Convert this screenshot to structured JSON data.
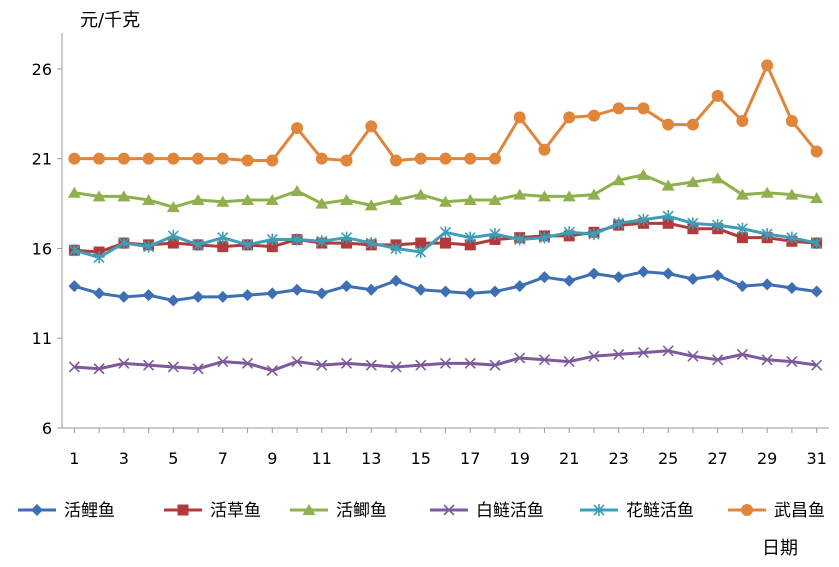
{
  "chart_data": {
    "type": "line",
    "ylabel": "元/千克",
    "xlabel": "日期",
    "ylim": [
      6,
      28
    ],
    "yticks": [
      6,
      11,
      16,
      21,
      26
    ],
    "xticks": [
      1,
      3,
      5,
      7,
      9,
      11,
      13,
      15,
      17,
      19,
      21,
      23,
      25,
      27,
      29,
      31
    ],
    "x": [
      1,
      2,
      3,
      4,
      5,
      6,
      7,
      8,
      9,
      10,
      11,
      12,
      13,
      14,
      15,
      16,
      17,
      18,
      19,
      20,
      21,
      22,
      23,
      24,
      25,
      26,
      27,
      28,
      29,
      30,
      31
    ],
    "legend_position": "bottom",
    "series": [
      {
        "name": "活鲤鱼",
        "color": "#3e6fb4",
        "marker": "diamond",
        "values": [
          13.9,
          13.5,
          13.3,
          13.4,
          13.1,
          13.3,
          13.3,
          13.4,
          13.5,
          13.7,
          13.5,
          13.9,
          13.7,
          14.2,
          13.7,
          13.6,
          13.5,
          13.6,
          13.9,
          14.4,
          14.2,
          14.6,
          14.4,
          14.7,
          14.6,
          14.3,
          14.5,
          13.9,
          14.0,
          13.8,
          13.6
        ]
      },
      {
        "name": "活草鱼",
        "color": "#b23a3a",
        "marker": "square",
        "values": [
          15.9,
          15.8,
          16.3,
          16.2,
          16.3,
          16.2,
          16.1,
          16.2,
          16.1,
          16.5,
          16.3,
          16.3,
          16.2,
          16.2,
          16.3,
          16.3,
          16.2,
          16.5,
          16.6,
          16.7,
          16.7,
          16.9,
          17.3,
          17.4,
          17.4,
          17.1,
          17.1,
          16.6,
          16.6,
          16.4,
          16.3
        ]
      },
      {
        "name": "活鲫鱼",
        "color": "#8fb04c",
        "marker": "triangle",
        "values": [
          19.1,
          18.9,
          18.9,
          18.7,
          18.3,
          18.7,
          18.6,
          18.7,
          18.7,
          19.2,
          18.5,
          18.7,
          18.4,
          18.7,
          19.0,
          18.6,
          18.7,
          18.7,
          19.0,
          18.9,
          18.9,
          19.0,
          19.8,
          20.1,
          19.5,
          19.7,
          19.9,
          19.0,
          19.1,
          19.0,
          18.8
        ]
      },
      {
        "name": "白鲢活鱼",
        "color": "#7e5a9c",
        "marker": "x",
        "values": [
          9.4,
          9.3,
          9.6,
          9.5,
          9.4,
          9.3,
          9.7,
          9.6,
          9.2,
          9.7,
          9.5,
          9.6,
          9.5,
          9.4,
          9.5,
          9.6,
          9.6,
          9.5,
          9.9,
          9.8,
          9.7,
          10.0,
          10.1,
          10.2,
          10.3,
          10.0,
          9.8,
          10.1,
          9.8,
          9.7,
          9.5
        ]
      },
      {
        "name": "花鲢活鱼",
        "color": "#3d9eb8",
        "marker": "star",
        "values": [
          15.9,
          15.5,
          16.3,
          16.1,
          16.7,
          16.2,
          16.6,
          16.2,
          16.5,
          16.5,
          16.4,
          16.6,
          16.3,
          16.0,
          15.8,
          16.9,
          16.6,
          16.8,
          16.5,
          16.6,
          16.9,
          16.8,
          17.4,
          17.6,
          17.8,
          17.4,
          17.3,
          17.1,
          16.8,
          16.6,
          16.3
        ]
      },
      {
        "name": "武昌鱼",
        "color": "#e0863a",
        "marker": "circle",
        "values": [
          21.0,
          21.0,
          21.0,
          21.0,
          21.0,
          21.0,
          21.0,
          20.9,
          20.9,
          22.7,
          21.0,
          20.9,
          22.8,
          20.9,
          21.0,
          21.0,
          21.0,
          21.0,
          23.3,
          21.5,
          23.3,
          23.4,
          23.8,
          23.8,
          22.9,
          22.9,
          24.5,
          23.1,
          26.2,
          23.1,
          21.4
        ]
      }
    ]
  }
}
